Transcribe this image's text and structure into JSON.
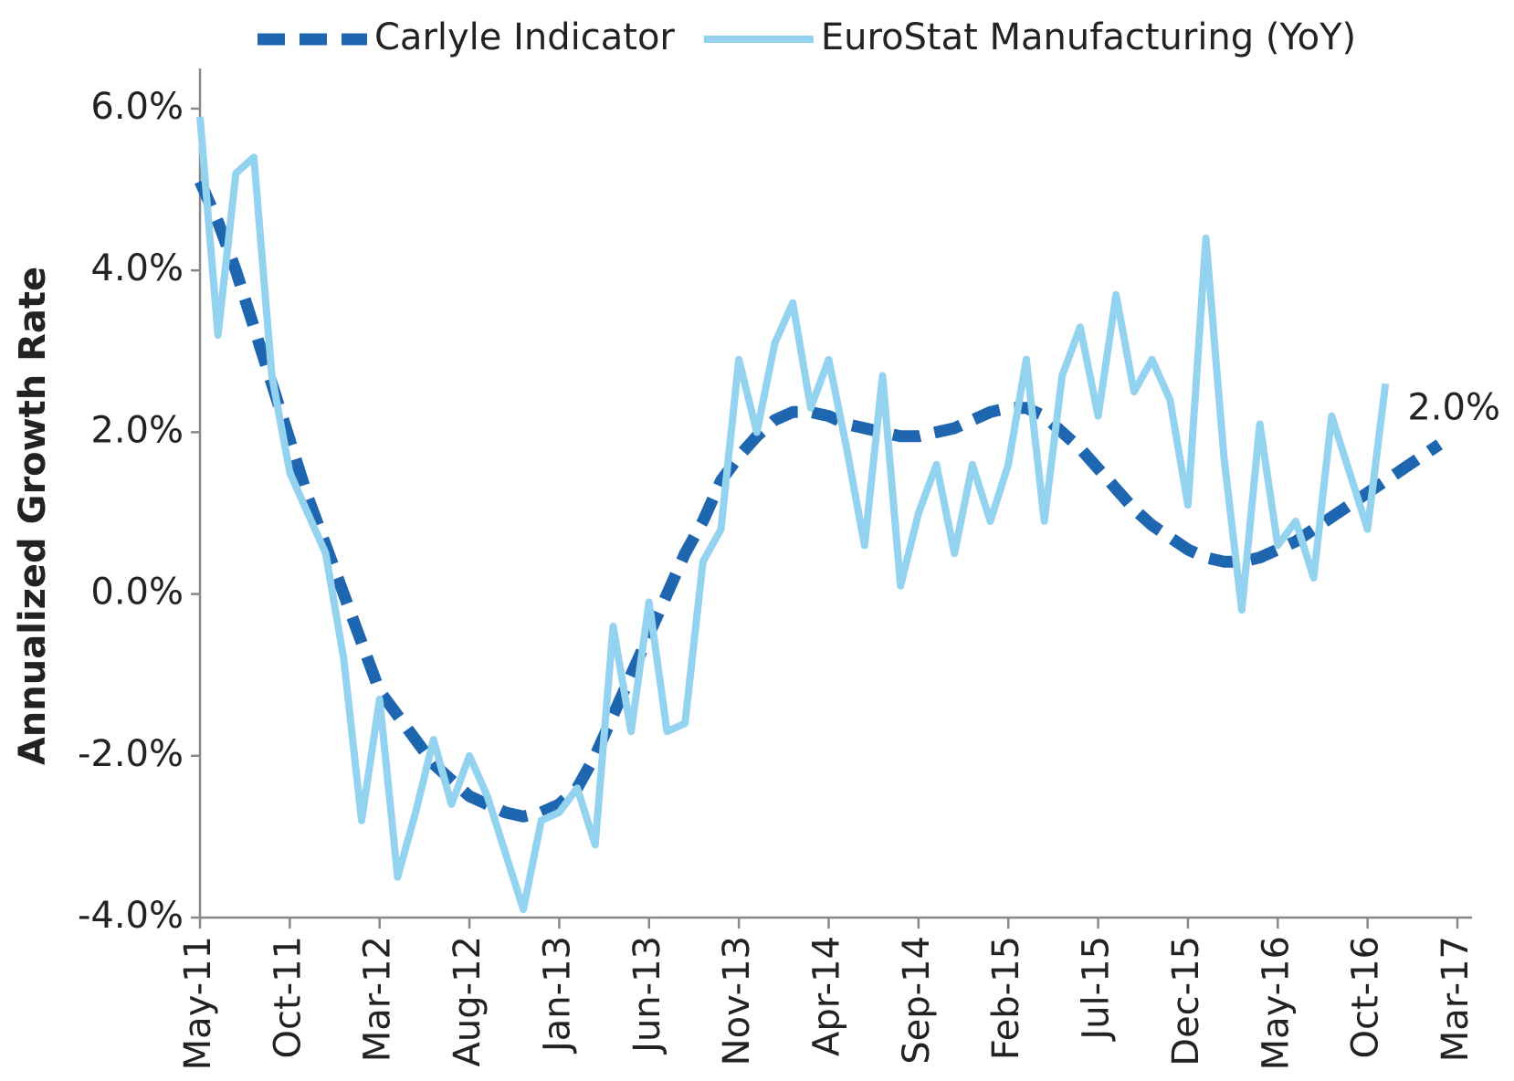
{
  "chart_data": {
    "type": "line",
    "ylabel": "Annualized Growth Rate",
    "annotations": [
      "2.0%"
    ],
    "categories": [
      "May-11",
      null,
      null,
      null,
      null,
      "Oct-11",
      null,
      null,
      null,
      null,
      "Mar-12",
      null,
      null,
      null,
      null,
      "Aug-12",
      null,
      null,
      null,
      null,
      "Jan-13",
      null,
      null,
      null,
      null,
      "Jun-13",
      null,
      null,
      null,
      null,
      "Nov-13",
      null,
      null,
      null,
      null,
      "Apr-14",
      null,
      null,
      null,
      null,
      "Sep-14",
      null,
      null,
      null,
      null,
      "Feb-15",
      null,
      null,
      null,
      null,
      "Jul-15",
      null,
      null,
      null,
      null,
      "Dec-15",
      null,
      null,
      null,
      null,
      "May-16",
      null,
      null,
      null,
      null,
      "Oct-16",
      null,
      null,
      null,
      null,
      "Mar-17"
    ],
    "series": [
      {
        "name": "Carlyle Indicator",
        "color": "#1f66b0",
        "dashed": true,
        "values": [
          5.1,
          4.6,
          4.0,
          3.3,
          2.6,
          1.9,
          1.2,
          0.6,
          0.0,
          -0.6,
          -1.2,
          -1.5,
          -1.8,
          -2.1,
          -2.3,
          -2.5,
          -2.6,
          -2.7,
          -2.75,
          -2.7,
          -2.6,
          -2.4,
          -2.0,
          -1.5,
          -1.0,
          -0.5,
          0.0,
          0.5,
          0.9,
          1.4,
          1.7,
          1.95,
          2.15,
          2.25,
          2.25,
          2.2,
          2.1,
          2.05,
          2.0,
          1.95,
          1.95,
          2.0,
          2.05,
          2.15,
          2.25,
          2.3,
          2.3,
          2.2,
          2.0,
          1.8,
          1.55,
          1.3,
          1.05,
          0.85,
          0.7,
          0.55,
          0.45,
          0.4,
          0.4,
          0.45,
          0.55,
          0.65,
          0.8,
          0.95,
          1.1,
          1.25,
          1.4,
          1.55,
          1.7,
          1.85,
          null
        ]
      },
      {
        "name": "EuroStat Manufacturing (YoY)",
        "color": "#94d3f0",
        "dashed": false,
        "values": [
          5.9,
          3.2,
          5.2,
          5.4,
          2.7,
          1.5,
          1.0,
          0.5,
          -0.8,
          -2.8,
          -1.3,
          -3.5,
          -2.7,
          -1.8,
          -2.6,
          -2.0,
          -2.5,
          -3.2,
          -3.9,
          -2.8,
          -2.7,
          -2.4,
          -3.1,
          -0.4,
          -1.7,
          -0.1,
          -1.7,
          -1.6,
          0.4,
          0.8,
          2.9,
          2.0,
          3.1,
          3.6,
          2.3,
          2.9,
          1.8,
          0.6,
          2.7,
          0.1,
          1.0,
          1.6,
          0.5,
          1.6,
          0.9,
          1.6,
          2.9,
          0.9,
          2.7,
          3.3,
          2.2,
          3.7,
          2.5,
          2.9,
          2.4,
          1.1,
          4.4,
          1.7,
          -0.2,
          2.1,
          0.6,
          0.9,
          0.2,
          2.2,
          1.5,
          0.8,
          2.6,
          null,
          null,
          null,
          null
        ]
      }
    ],
    "ylim": [
      -4,
      6
    ],
    "yticks": [
      {
        "value": -4,
        "label": "-4.0%"
      },
      {
        "value": -2,
        "label": "-2.0%"
      },
      {
        "value": 0,
        "label": "0.0%"
      },
      {
        "value": 2,
        "label": "2.0%"
      },
      {
        "value": 4,
        "label": "4.0%"
      },
      {
        "value": 6,
        "label": "6.0%"
      }
    ],
    "legend": "top"
  }
}
